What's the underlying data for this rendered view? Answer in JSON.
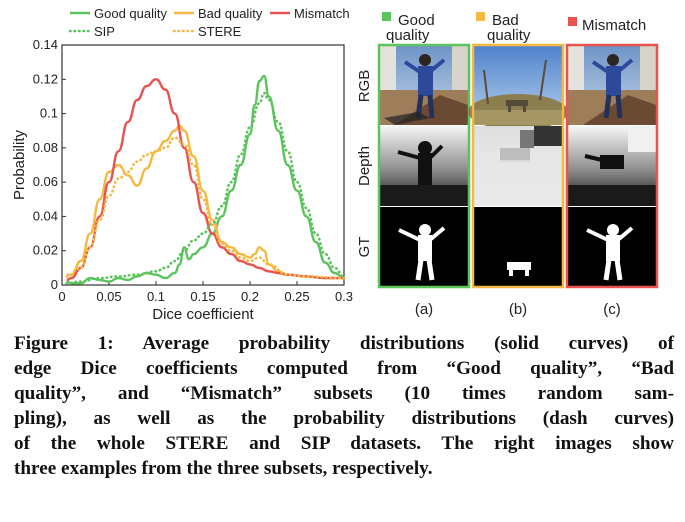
{
  "colors": {
    "good": "#5cc45c",
    "bad": "#f5b941",
    "mismatch": "#e8524f",
    "sip": "#5cc45c",
    "stere": "#f5b941"
  },
  "chart_data": {
    "type": "line",
    "title": "",
    "xlabel": "Dice coefficient",
    "ylabel": "Probability",
    "xlim": [
      0,
      0.3
    ],
    "ylim": [
      0,
      0.14
    ],
    "xticks": [
      "0",
      "0.05",
      "0.1",
      "0.15",
      "0.2",
      "0.25",
      "0.3"
    ],
    "yticks": [
      "0",
      "0.02",
      "0.04",
      "0.06",
      "0.08",
      "0.1",
      "0.12",
      "0.14"
    ],
    "legend": [
      {
        "name": "Good quality",
        "style": "solid",
        "color": "good"
      },
      {
        "name": "Bad quality",
        "style": "solid",
        "color": "bad"
      },
      {
        "name": "Mismatch",
        "style": "solid",
        "color": "mismatch"
      },
      {
        "name": "SIP",
        "style": "dotted",
        "color": "sip"
      },
      {
        "name": "STERE",
        "style": "dotted",
        "color": "stere"
      }
    ],
    "series": [
      {
        "name": "Good quality",
        "style": "solid",
        "color": "good",
        "points": [
          [
            0.005,
            0.002
          ],
          [
            0.01,
            0.001
          ],
          [
            0.02,
            0.001
          ],
          [
            0.03,
            0.004
          ],
          [
            0.04,
            0.003
          ],
          [
            0.05,
            0.002
          ],
          [
            0.06,
            0.004
          ],
          [
            0.07,
            0.003
          ],
          [
            0.08,
            0.005
          ],
          [
            0.09,
            0.007
          ],
          [
            0.1,
            0.006
          ],
          [
            0.11,
            0.004
          ],
          [
            0.12,
            0.007
          ],
          [
            0.125,
            0.012
          ],
          [
            0.13,
            0.022
          ],
          [
            0.135,
            0.015
          ],
          [
            0.14,
            0.018
          ],
          [
            0.15,
            0.022
          ],
          [
            0.16,
            0.03
          ],
          [
            0.17,
            0.04
          ],
          [
            0.18,
            0.055
          ],
          [
            0.19,
            0.07
          ],
          [
            0.2,
            0.088
          ],
          [
            0.205,
            0.105
          ],
          [
            0.21,
            0.119
          ],
          [
            0.215,
            0.122
          ],
          [
            0.22,
            0.11
          ],
          [
            0.23,
            0.09
          ],
          [
            0.24,
            0.07
          ],
          [
            0.25,
            0.055
          ],
          [
            0.26,
            0.04
          ],
          [
            0.27,
            0.025
          ],
          [
            0.28,
            0.013
          ],
          [
            0.29,
            0.007
          ],
          [
            0.3,
            0.004
          ]
        ]
      },
      {
        "name": "Bad quality",
        "style": "solid",
        "color": "bad",
        "points": [
          [
            0.005,
            0.006
          ],
          [
            0.01,
            0.006
          ],
          [
            0.02,
            0.014
          ],
          [
            0.03,
            0.03
          ],
          [
            0.04,
            0.05
          ],
          [
            0.05,
            0.066
          ],
          [
            0.06,
            0.07
          ],
          [
            0.07,
            0.064
          ],
          [
            0.08,
            0.058
          ],
          [
            0.09,
            0.068
          ],
          [
            0.1,
            0.078
          ],
          [
            0.11,
            0.084
          ],
          [
            0.12,
            0.09
          ],
          [
            0.125,
            0.093
          ],
          [
            0.13,
            0.09
          ],
          [
            0.14,
            0.075
          ],
          [
            0.15,
            0.055
          ],
          [
            0.16,
            0.038
          ],
          [
            0.17,
            0.025
          ],
          [
            0.18,
            0.022
          ],
          [
            0.19,
            0.018
          ],
          [
            0.2,
            0.016
          ],
          [
            0.205,
            0.018
          ],
          [
            0.21,
            0.022
          ],
          [
            0.215,
            0.02
          ],
          [
            0.22,
            0.012
          ],
          [
            0.23,
            0.008
          ],
          [
            0.24,
            0.006
          ],
          [
            0.26,
            0.005
          ],
          [
            0.28,
            0.004
          ],
          [
            0.3,
            0.004
          ]
        ]
      },
      {
        "name": "Mismatch",
        "style": "solid",
        "color": "mismatch",
        "points": [
          [
            0.005,
            0.003
          ],
          [
            0.01,
            0.004
          ],
          [
            0.02,
            0.01
          ],
          [
            0.03,
            0.022
          ],
          [
            0.04,
            0.04
          ],
          [
            0.05,
            0.06
          ],
          [
            0.06,
            0.078
          ],
          [
            0.07,
            0.095
          ],
          [
            0.08,
            0.108
          ],
          [
            0.09,
            0.116
          ],
          [
            0.1,
            0.12
          ],
          [
            0.11,
            0.114
          ],
          [
            0.12,
            0.1
          ],
          [
            0.13,
            0.08
          ],
          [
            0.14,
            0.06
          ],
          [
            0.15,
            0.042
          ],
          [
            0.16,
            0.03
          ],
          [
            0.17,
            0.022
          ],
          [
            0.18,
            0.018
          ],
          [
            0.19,
            0.014
          ],
          [
            0.2,
            0.012
          ],
          [
            0.21,
            0.01
          ],
          [
            0.22,
            0.008
          ],
          [
            0.23,
            0.007
          ],
          [
            0.24,
            0.006
          ],
          [
            0.26,
            0.005
          ],
          [
            0.28,
            0.004
          ],
          [
            0.3,
            0.004
          ]
        ]
      },
      {
        "name": "SIP",
        "style": "dotted",
        "color": "sip",
        "points": [
          [
            0.005,
            0.001
          ],
          [
            0.02,
            0.002
          ],
          [
            0.04,
            0.004
          ],
          [
            0.06,
            0.005
          ],
          [
            0.08,
            0.006
          ],
          [
            0.1,
            0.008
          ],
          [
            0.11,
            0.01
          ],
          [
            0.12,
            0.014
          ],
          [
            0.13,
            0.02
          ],
          [
            0.14,
            0.026
          ],
          [
            0.15,
            0.03
          ],
          [
            0.16,
            0.036
          ],
          [
            0.17,
            0.046
          ],
          [
            0.18,
            0.06
          ],
          [
            0.19,
            0.076
          ],
          [
            0.2,
            0.092
          ],
          [
            0.21,
            0.106
          ],
          [
            0.215,
            0.112
          ],
          [
            0.22,
            0.108
          ],
          [
            0.23,
            0.095
          ],
          [
            0.24,
            0.078
          ],
          [
            0.25,
            0.06
          ],
          [
            0.26,
            0.045
          ],
          [
            0.27,
            0.03
          ],
          [
            0.28,
            0.018
          ],
          [
            0.29,
            0.01
          ],
          [
            0.3,
            0.005
          ]
        ]
      },
      {
        "name": "STERE",
        "style": "dotted",
        "color": "stere",
        "points": [
          [
            0.005,
            0.005
          ],
          [
            0.02,
            0.01
          ],
          [
            0.03,
            0.022
          ],
          [
            0.04,
            0.038
          ],
          [
            0.05,
            0.052
          ],
          [
            0.06,
            0.062
          ],
          [
            0.07,
            0.066
          ],
          [
            0.08,
            0.072
          ],
          [
            0.09,
            0.076
          ],
          [
            0.1,
            0.078
          ],
          [
            0.11,
            0.08
          ],
          [
            0.12,
            0.086
          ],
          [
            0.13,
            0.082
          ],
          [
            0.14,
            0.07
          ],
          [
            0.15,
            0.05
          ],
          [
            0.16,
            0.035
          ],
          [
            0.17,
            0.024
          ],
          [
            0.18,
            0.02
          ],
          [
            0.19,
            0.016
          ],
          [
            0.2,
            0.014
          ],
          [
            0.21,
            0.016
          ],
          [
            0.22,
            0.012
          ],
          [
            0.24,
            0.006
          ],
          [
            0.26,
            0.005
          ],
          [
            0.3,
            0.004
          ]
        ]
      }
    ]
  },
  "panels": {
    "row_labels": [
      "RGB",
      "Depth",
      "GT"
    ],
    "columns": [
      {
        "header_line1": "Good",
        "header_line2": "quality",
        "label": "(a)",
        "color": "good"
      },
      {
        "header_line1": "Bad",
        "header_line2": "quality",
        "label": "(b)",
        "color": "bad"
      },
      {
        "header_line1": "Mismatch",
        "header_line2": "",
        "label": "(c)",
        "color": "mismatch"
      }
    ]
  },
  "caption": {
    "lines": [
      "Figure 1: Average probability distributions (solid curves) of",
      "edge Dice coefficients computed from “Good quality”, “Bad",
      "quality”, and “Mismatch” subsets (10 times random sam-",
      "pling), as well as the probability distributions (dash curves)",
      "of the whole STERE and SIP datasets. The right images show",
      "three examples from the three subsets, respectively."
    ]
  }
}
